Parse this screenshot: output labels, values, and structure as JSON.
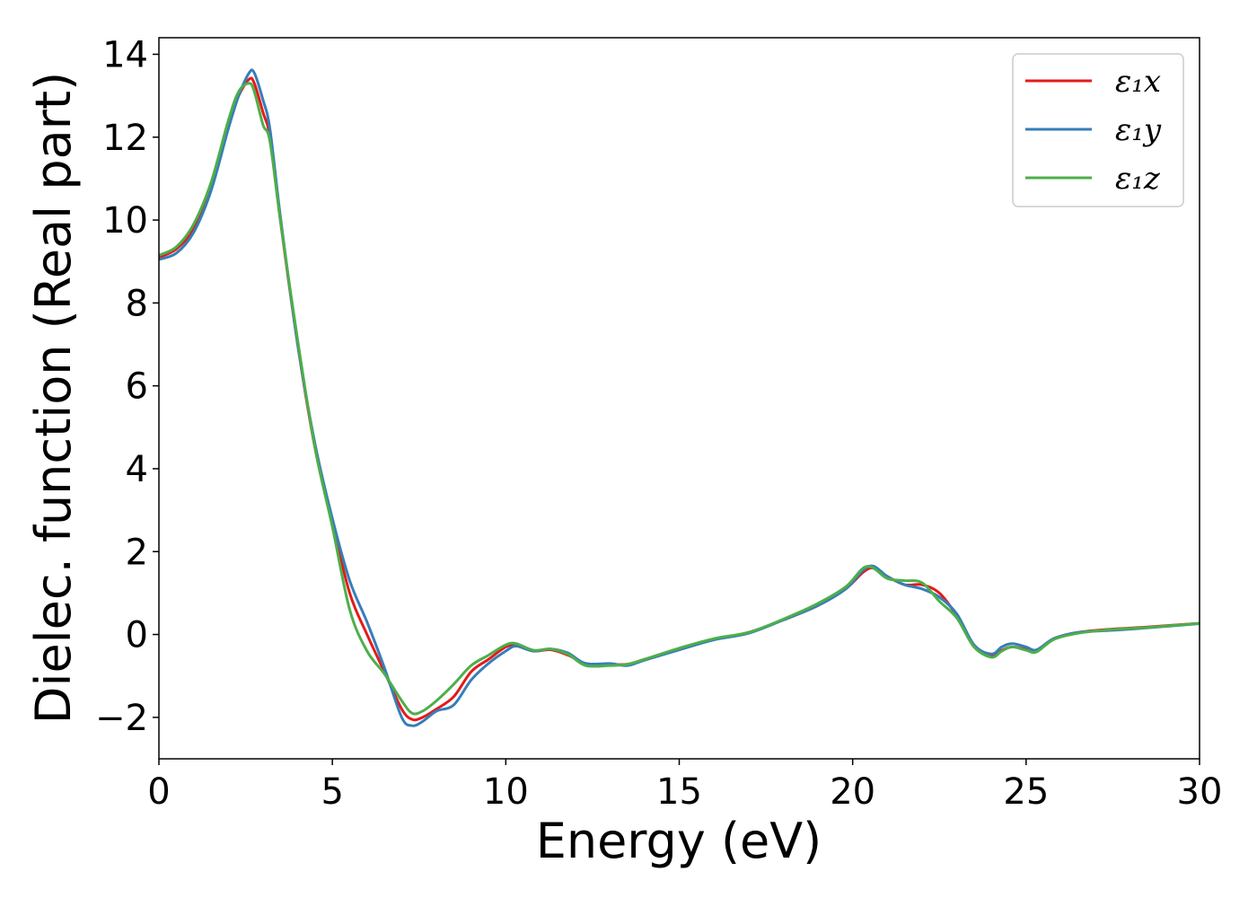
{
  "chart_data": {
    "type": "line",
    "xlabel": "Energy (eV)",
    "ylabel": "Dielec. function (Real part)",
    "xlim": [
      0,
      30
    ],
    "ylim": [
      -3,
      14.4
    ],
    "xticks": [
      0,
      5,
      10,
      15,
      20,
      25,
      30
    ],
    "xtick_labels": [
      "0",
      "5",
      "10",
      "15",
      "20",
      "25",
      "30"
    ],
    "yticks": [
      -2,
      0,
      2,
      4,
      6,
      8,
      10,
      12,
      14
    ],
    "ytick_labels": [
      "−2",
      "0",
      "2",
      "4",
      "6",
      "8",
      "10",
      "12",
      "14"
    ],
    "grid": false,
    "legend_position": "top-right",
    "series": [
      {
        "name": "ε₁x",
        "color": "#e41a1c",
        "x": [
          0,
          0.5,
          1.0,
          1.5,
          2.0,
          2.3,
          2.6,
          2.75,
          3.0,
          3.2,
          3.5,
          4.0,
          4.5,
          5.0,
          5.5,
          6.0,
          6.5,
          7.0,
          7.3,
          7.6,
          8.0,
          8.5,
          9.0,
          9.5,
          10.0,
          10.3,
          10.8,
          11.3,
          11.8,
          12.3,
          13.0,
          13.5,
          14.0,
          15.0,
          16.0,
          17.0,
          18.0,
          19.0,
          19.8,
          20.3,
          20.6,
          21.0,
          21.5,
          22.0,
          22.5,
          23.0,
          23.5,
          24.0,
          24.3,
          24.6,
          25.0,
          25.3,
          25.8,
          26.5,
          27.5,
          28.5,
          30.0
        ],
        "y": [
          9.1,
          9.3,
          9.8,
          10.8,
          12.3,
          13.0,
          13.4,
          13.3,
          12.6,
          12.0,
          10.0,
          7.0,
          4.5,
          2.7,
          1.0,
          0.0,
          -0.9,
          -1.8,
          -2.05,
          -2.0,
          -1.8,
          -1.5,
          -0.9,
          -0.6,
          -0.3,
          -0.27,
          -0.4,
          -0.37,
          -0.5,
          -0.7,
          -0.72,
          -0.72,
          -0.6,
          -0.35,
          -0.12,
          0.05,
          0.35,
          0.7,
          1.1,
          1.5,
          1.6,
          1.4,
          1.2,
          1.2,
          1.0,
          0.45,
          -0.3,
          -0.5,
          -0.38,
          -0.3,
          -0.36,
          -0.4,
          -0.1,
          0.05,
          0.13,
          0.18,
          0.27
        ]
      },
      {
        "name": "ε₁y",
        "color": "#377eb8",
        "x": [
          0,
          0.5,
          1.0,
          1.5,
          2.0,
          2.3,
          2.6,
          2.75,
          3.0,
          3.2,
          3.5,
          4.0,
          4.5,
          5.0,
          5.5,
          6.0,
          6.5,
          7.0,
          7.3,
          7.6,
          8.0,
          8.5,
          9.0,
          9.5,
          10.0,
          10.3,
          10.8,
          11.3,
          11.8,
          12.3,
          13.0,
          13.5,
          14.0,
          15.0,
          16.0,
          17.0,
          18.0,
          19.0,
          19.8,
          20.3,
          20.6,
          21.0,
          21.5,
          22.0,
          22.5,
          23.0,
          23.5,
          24.0,
          24.3,
          24.6,
          25.0,
          25.3,
          25.8,
          26.5,
          27.5,
          28.5,
          30.0
        ],
        "y": [
          9.05,
          9.2,
          9.7,
          10.7,
          12.2,
          13.0,
          13.55,
          13.55,
          12.9,
          12.2,
          10.1,
          7.0,
          4.6,
          2.8,
          1.3,
          0.3,
          -0.8,
          -2.0,
          -2.2,
          -2.1,
          -1.85,
          -1.7,
          -1.1,
          -0.7,
          -0.4,
          -0.28,
          -0.4,
          -0.35,
          -0.45,
          -0.7,
          -0.7,
          -0.75,
          -0.62,
          -0.37,
          -0.13,
          0.03,
          0.35,
          0.7,
          1.1,
          1.55,
          1.65,
          1.4,
          1.2,
          1.1,
          0.9,
          0.5,
          -0.25,
          -0.47,
          -0.3,
          -0.22,
          -0.3,
          -0.37,
          -0.1,
          0.05,
          0.1,
          0.16,
          0.26
        ]
      },
      {
        "name": "ε₁z",
        "color": "#4daf4a",
        "x": [
          0,
          0.5,
          1.0,
          1.5,
          2.0,
          2.3,
          2.6,
          2.75,
          3.0,
          3.2,
          3.5,
          4.0,
          4.5,
          5.0,
          5.5,
          6.0,
          6.5,
          7.0,
          7.3,
          7.6,
          8.0,
          8.5,
          9.0,
          9.5,
          10.0,
          10.3,
          10.8,
          11.3,
          11.8,
          12.3,
          13.0,
          13.5,
          14.0,
          15.0,
          16.0,
          17.0,
          18.0,
          19.0,
          19.8,
          20.3,
          20.6,
          21.0,
          21.5,
          22.0,
          22.5,
          23.0,
          23.5,
          24.0,
          24.3,
          24.6,
          25.0,
          25.3,
          25.8,
          26.5,
          27.5,
          28.5,
          30.0
        ],
        "y": [
          9.15,
          9.35,
          9.9,
          10.9,
          12.4,
          13.1,
          13.3,
          13.1,
          12.3,
          11.9,
          10.0,
          7.1,
          4.5,
          2.6,
          0.6,
          -0.4,
          -0.95,
          -1.6,
          -1.9,
          -1.85,
          -1.6,
          -1.2,
          -0.75,
          -0.5,
          -0.25,
          -0.22,
          -0.38,
          -0.35,
          -0.48,
          -0.75,
          -0.75,
          -0.72,
          -0.6,
          -0.33,
          -0.1,
          0.05,
          0.37,
          0.75,
          1.15,
          1.6,
          1.6,
          1.35,
          1.3,
          1.25,
          0.8,
          0.4,
          -0.3,
          -0.55,
          -0.4,
          -0.3,
          -0.38,
          -0.42,
          -0.12,
          0.03,
          0.12,
          0.17,
          0.27
        ]
      }
    ]
  }
}
